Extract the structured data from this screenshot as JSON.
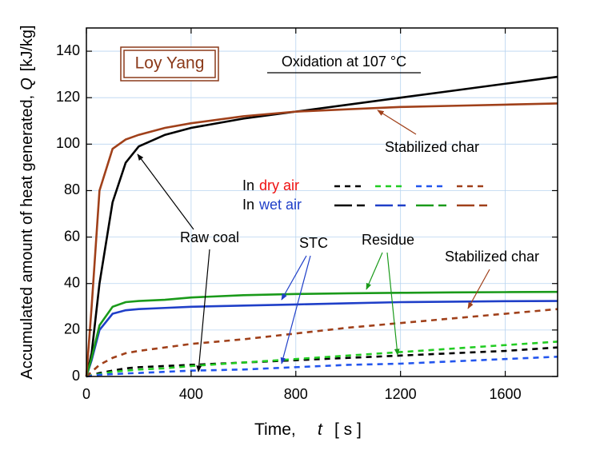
{
  "chart_data": {
    "type": "line",
    "title": "Loy Yang",
    "subtitle": "Oxidation at 107 °C",
    "x_label": {
      "text": "Time,",
      "symbol": "t",
      "unit": "[ s ]"
    },
    "y_label": {
      "text": "Accumulated amount of heat generated,",
      "symbol": "Q",
      "unit": "[kJ/kg]"
    },
    "xlim": [
      0,
      1800
    ],
    "xticks": [
      0,
      400,
      800,
      1200,
      1600
    ],
    "ylim": [
      0,
      150
    ],
    "yticks": [
      0,
      20,
      40,
      60,
      80,
      100,
      120,
      140
    ],
    "grid": true,
    "x": [
      0,
      20,
      50,
      100,
      150,
      200,
      300,
      400,
      600,
      800,
      1000,
      1200,
      1400,
      1600,
      1800
    ],
    "series": [
      {
        "color": "#000000",
        "dash": true,
        "values": [
          0,
          0.5,
          1.5,
          2.5,
          3.5,
          4,
          4.5,
          5,
          6,
          7,
          8,
          9,
          10,
          11,
          12.5
        ]
      },
      {
        "color": "#22cc22",
        "dash": true,
        "values": [
          0,
          0.5,
          1,
          2,
          2.5,
          3,
          3.5,
          4.5,
          6,
          7.5,
          9,
          10.5,
          12,
          13.5,
          15
        ]
      },
      {
        "color": "#2255ee",
        "dash": true,
        "values": [
          0,
          0.3,
          0.7,
          1,
          1.3,
          1.5,
          2,
          2.5,
          3,
          4,
          5,
          5.5,
          6.5,
          7.5,
          8.5
        ]
      },
      {
        "color": "#a0401a",
        "dash": true,
        "values": [
          0,
          2,
          5,
          8,
          10,
          11,
          12.5,
          14,
          16,
          18.5,
          21,
          23,
          25,
          27,
          29
        ]
      },
      {
        "color": "#000000",
        "dash": false,
        "values": [
          0,
          10,
          40,
          75,
          92,
          99,
          104,
          107,
          111,
          114,
          117,
          120,
          123,
          126,
          129
        ]
      },
      {
        "color": "#1f3fc8",
        "dash": false,
        "values": [
          0,
          7,
          20,
          27,
          28.5,
          29,
          29.5,
          30,
          30.5,
          31,
          31.5,
          32,
          32.2,
          32.4,
          32.5
        ]
      },
      {
        "color": "#1a9a1a",
        "dash": false,
        "values": [
          0,
          8,
          22,
          30,
          32,
          32.5,
          33,
          34,
          35,
          35.5,
          35.8,
          36,
          36.2,
          36.3,
          36.4
        ]
      },
      {
        "color": "#a0401a",
        "dash": false,
        "values": [
          0,
          30,
          80,
          98,
          102,
          104,
          107,
          109,
          112,
          114,
          115,
          116,
          116.5,
          117,
          117.5
        ]
      }
    ],
    "legend": [
      {
        "prefix": "In",
        "label": "dry air",
        "label_color": "#ee1111",
        "dash": true
      },
      {
        "prefix": "In",
        "label": "wet air",
        "label_color": "#1f3fc8",
        "dash": false
      }
    ],
    "annotations": [
      {
        "text": "Stabilized char",
        "color": "#a0401a"
      },
      {
        "text": "Raw coal",
        "color": "#000000"
      },
      {
        "text": "STC",
        "color": "#1f3fc8"
      },
      {
        "text": "Residue",
        "color": "#1a9a1a"
      },
      {
        "text": "Stabilized char",
        "color": "#a0401a"
      }
    ]
  }
}
